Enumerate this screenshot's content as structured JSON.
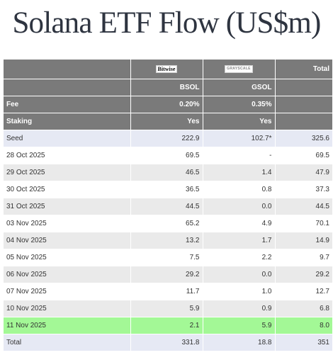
{
  "title": "Solana ETF Flow (US$m)",
  "logos": {
    "bitwise": "Bitwise",
    "grayscale": "GRAYSCALE"
  },
  "header": {
    "total_label": "Total",
    "tickers": [
      "BSOL",
      "GSOL"
    ],
    "fee": {
      "label": "Fee",
      "values": [
        "0.20%",
        "0.35%"
      ]
    },
    "staking": {
      "label": "Staking",
      "values": [
        "Yes",
        "Yes"
      ]
    }
  },
  "rows": [
    {
      "date": "Seed",
      "bsol": "222.9",
      "gsol": "102.7*",
      "total": "325.6"
    },
    {
      "date": "28 Oct 2025",
      "bsol": "69.5",
      "gsol": "-",
      "total": "69.5"
    },
    {
      "date": "29 Oct 2025",
      "bsol": "46.5",
      "gsol": "1.4",
      "total": "47.9"
    },
    {
      "date": "30 Oct 2025",
      "bsol": "36.5",
      "gsol": "0.8",
      "total": "37.3"
    },
    {
      "date": "31 Oct 2025",
      "bsol": "44.5",
      "gsol": "0.0",
      "total": "44.5"
    },
    {
      "date": "03 Nov 2025",
      "bsol": "65.2",
      "gsol": "4.9",
      "total": "70.1"
    },
    {
      "date": "04 Nov 2025",
      "bsol": "13.2",
      "gsol": "1.7",
      "total": "14.9"
    },
    {
      "date": "05 Nov 2025",
      "bsol": "7.5",
      "gsol": "2.2",
      "total": "9.7"
    },
    {
      "date": "06 Nov 2025",
      "bsol": "29.2",
      "gsol": "0.0",
      "total": "29.2"
    },
    {
      "date": "07 Nov 2025",
      "bsol": "11.7",
      "gsol": "1.0",
      "total": "12.7"
    },
    {
      "date": "10 Nov 2025",
      "bsol": "5.9",
      "gsol": "0.9",
      "total": "6.8"
    },
    {
      "date": "11 Nov 2025",
      "bsol": "2.1",
      "gsol": "5.9",
      "total": "8.0"
    },
    {
      "date": "Total",
      "bsol": "331.8",
      "gsol": "18.8",
      "total": "351"
    }
  ],
  "colors": {
    "header_bg": "#7a7a7a",
    "stripe_bg": "#eaeaea",
    "seed_total_bg": "#e6e9f4",
    "highlight_bg": "#a3f896"
  }
}
